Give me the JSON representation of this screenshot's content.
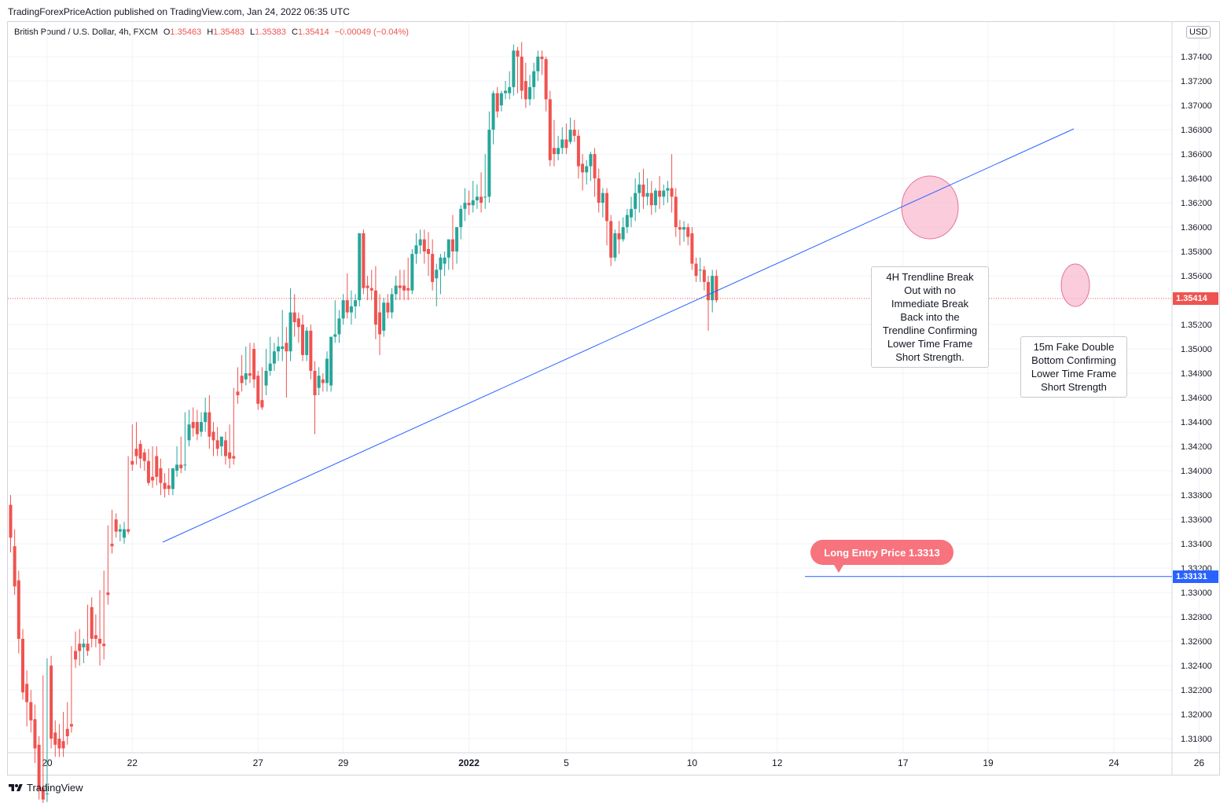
{
  "header": {
    "publisher": "TradingForexPriceAction published on TradingView.com, Jan 24, 2022 06:35 UTC"
  },
  "symbol": {
    "name": "British Pound / U.S. Dollar, 4h, FXCM",
    "o_label": "O",
    "o": "1.35463",
    "h_label": "H",
    "h": "1.35483",
    "l_label": "L",
    "l": "1.35383",
    "c_label": "C",
    "c": "1.35414",
    "change": "−0.00049 (−0.04%)"
  },
  "currency": "USD",
  "footer": {
    "brand": "TradingView"
  },
  "annotations": {
    "trendline_note": [
      "4H Trendline Break",
      "Out with no",
      "Immediate Break",
      "Back into the",
      "Trendline Confirming",
      "Lower Time Frame",
      "Short Strength."
    ],
    "fake_bottom_note": [
      "15m Fake Double",
      "Bottom Confirming",
      "Lower Time Frame",
      "Short Strength"
    ],
    "entry_label": "Long Entry Price 1.3313"
  },
  "price_tags": {
    "current": "1.35414",
    "entry": "1.33131"
  },
  "colors": {
    "up": "#26a69a",
    "down": "#ef5350",
    "trendline": "#2962ff",
    "highlight": "#f8bbd0",
    "entry_line": "#2962ff",
    "current_line": "#ef5350"
  },
  "chart_data": {
    "type": "candlestick",
    "symbol": "GBPUSD",
    "timeframe": "4h",
    "y_ticks": [
      "1.37400",
      "1.37200",
      "1.37000",
      "1.36800",
      "1.36600",
      "1.36400",
      "1.36200",
      "1.36000",
      "1.35800",
      "1.35600",
      "1.35200",
      "1.35000",
      "1.34800",
      "1.34600",
      "1.34400",
      "1.34200",
      "1.34000",
      "1.33800",
      "1.33600",
      "1.33400",
      "1.33200",
      "1.33000",
      "1.32800",
      "1.32600",
      "1.32400",
      "1.32200",
      "1.32000",
      "1.31800"
    ],
    "ylim": [
      1.3162,
      1.3762
    ],
    "x_ticks": [
      {
        "label": "20",
        "i": 9
      },
      {
        "label": "22",
        "i": 30
      },
      {
        "label": "27",
        "i": 61
      },
      {
        "label": "29",
        "i": 82
      },
      {
        "label": "2022",
        "i": 113
      },
      {
        "label": "5",
        "i": 137
      },
      {
        "label": "10",
        "i": 168
      },
      {
        "label": "12",
        "i": 189
      },
      {
        "label": "17",
        "i": 220
      },
      {
        "label": "19",
        "i": 241
      },
      {
        "label": "24",
        "i": 272
      },
      {
        "label": "26",
        "i": 293
      }
    ],
    "candles": [
      [
        1.3372,
        1.338,
        1.3345,
        1.3333
      ],
      [
        1.3338,
        1.3352,
        1.3305,
        1.3298
      ],
      [
        1.331,
        1.3318,
        1.3262,
        1.325
      ],
      [
        1.3262,
        1.327,
        1.3218,
        1.3212
      ],
      [
        1.3225,
        1.3236,
        1.321,
        1.319
      ],
      [
        1.321,
        1.322,
        1.3195,
        1.3185
      ],
      [
        1.3196,
        1.3208,
        1.3172,
        1.316
      ],
      [
        1.3175,
        1.3182,
        1.3138,
        1.313
      ],
      [
        1.314,
        1.3232,
        1.313,
        1.3125
      ],
      [
        1.3135,
        1.3246,
        1.3135,
        1.3128
      ],
      [
        1.324,
        1.3248,
        1.318,
        1.3172
      ],
      [
        1.3185,
        1.3195,
        1.3175,
        1.3165
      ],
      [
        1.318,
        1.3192,
        1.3172,
        1.3165
      ],
      [
        1.3178,
        1.3202,
        1.3172,
        1.3165
      ],
      [
        1.3188,
        1.321,
        1.3182,
        1.3175
      ],
      [
        1.3192,
        1.3256,
        1.319,
        1.3185
      ],
      [
        1.3252,
        1.3268,
        1.3245,
        1.3238
      ],
      [
        1.3258,
        1.327,
        1.3252,
        1.324
      ],
      [
        1.3255,
        1.3262,
        1.3258,
        1.3242
      ],
      [
        1.3258,
        1.329,
        1.3252,
        1.3248
      ],
      [
        1.3288,
        1.3296,
        1.3262,
        1.3255
      ],
      [
        1.3265,
        1.3282,
        1.3262,
        1.3255
      ],
      [
        1.3262,
        1.3302,
        1.3258,
        1.324
      ],
      [
        1.3258,
        1.3318,
        1.3256,
        1.3245
      ],
      [
        1.33,
        1.3355,
        1.3298,
        1.329
      ],
      [
        1.334,
        1.3368,
        1.3338,
        1.3332
      ],
      [
        1.336,
        1.3365,
        1.335,
        1.3345
      ],
      [
        1.335,
        1.3356,
        1.3352,
        1.3342
      ],
      [
        1.3345,
        1.3358,
        1.3352,
        1.334
      ],
      [
        1.3352,
        1.3412,
        1.335,
        1.3348
      ],
      [
        1.3408,
        1.3438,
        1.3405,
        1.34
      ],
      [
        1.3418,
        1.344,
        1.3412,
        1.3405
      ],
      [
        1.3422,
        1.3425,
        1.341,
        1.3402
      ],
      [
        1.3415,
        1.3418,
        1.3408,
        1.34
      ],
      [
        1.3408,
        1.3418,
        1.339,
        1.3388
      ],
      [
        1.3395,
        1.342,
        1.3392,
        1.3386
      ],
      [
        1.3412,
        1.342,
        1.3395,
        1.3388
      ],
      [
        1.3402,
        1.341,
        1.339,
        1.338
      ],
      [
        1.339,
        1.3398,
        1.3385,
        1.3378
      ],
      [
        1.3388,
        1.3402,
        1.3385,
        1.338
      ],
      [
        1.3385,
        1.34,
        1.3402,
        1.338
      ],
      [
        1.34,
        1.342,
        1.3405,
        1.3395
      ],
      [
        1.3405,
        1.3428,
        1.3402,
        1.3398
      ],
      [
        1.3405,
        1.3448,
        1.3405,
        1.34
      ],
      [
        1.3425,
        1.345,
        1.3438,
        1.342
      ],
      [
        1.344,
        1.3452,
        1.3435,
        1.3428
      ],
      [
        1.344,
        1.345,
        1.343,
        1.3425
      ],
      [
        1.3432,
        1.3448,
        1.344,
        1.3428
      ],
      [
        1.344,
        1.346,
        1.3448,
        1.3432
      ],
      [
        1.3448,
        1.3462,
        1.3428,
        1.3418
      ],
      [
        1.3432,
        1.344,
        1.3425,
        1.3412
      ],
      [
        1.3425,
        1.3436,
        1.3418,
        1.3412
      ],
      [
        1.342,
        1.3428,
        1.3428,
        1.3412
      ],
      [
        1.3425,
        1.3432,
        1.3412,
        1.3405
      ],
      [
        1.3415,
        1.3438,
        1.341,
        1.3402
      ],
      [
        1.3412,
        1.3468,
        1.341,
        1.3405
      ],
      [
        1.3465,
        1.3485,
        1.3462,
        1.3455
      ],
      [
        1.3478,
        1.3495,
        1.3472,
        1.3465
      ],
      [
        1.3475,
        1.3502,
        1.348,
        1.347
      ],
      [
        1.348,
        1.3505,
        1.3478,
        1.3472
      ],
      [
        1.35,
        1.3505,
        1.3475,
        1.3468
      ],
      [
        1.3478,
        1.3482,
        1.3455,
        1.345
      ],
      [
        1.3458,
        1.3485,
        1.3452,
        1.345
      ],
      [
        1.347,
        1.35,
        1.3482,
        1.3462
      ],
      [
        1.3482,
        1.351,
        1.3488,
        1.3478
      ],
      [
        1.3488,
        1.3505,
        1.3498,
        1.3482
      ],
      [
        1.3498,
        1.351,
        1.3502,
        1.349
      ],
      [
        1.35,
        1.3532,
        1.3502,
        1.349
      ],
      [
        1.3505,
        1.3518,
        1.3498,
        1.346
      ],
      [
        1.3498,
        1.355,
        1.353,
        1.349
      ],
      [
        1.353,
        1.3545,
        1.3522,
        1.351
      ],
      [
        1.3525,
        1.353,
        1.3518,
        1.3505
      ],
      [
        1.352,
        1.3528,
        1.3495,
        1.349
      ],
      [
        1.3495,
        1.3518,
        1.3515,
        1.349
      ],
      [
        1.3515,
        1.352,
        1.3482,
        1.3475
      ],
      [
        1.3482,
        1.349,
        1.3462,
        1.343
      ],
      [
        1.3468,
        1.3485,
        1.3478,
        1.3462
      ],
      [
        1.3475,
        1.348,
        1.3472,
        1.3465
      ],
      [
        1.3472,
        1.3498,
        1.3492,
        1.3465
      ],
      [
        1.347,
        1.351,
        1.351,
        1.3465
      ],
      [
        1.351,
        1.354,
        1.3512,
        1.3505
      ],
      [
        1.3512,
        1.3532,
        1.3525,
        1.3505
      ],
      [
        1.3525,
        1.3545,
        1.354,
        1.352
      ],
      [
        1.354,
        1.3562,
        1.353,
        1.3525
      ],
      [
        1.353,
        1.3548,
        1.3535,
        1.352
      ],
      [
        1.3535,
        1.3545,
        1.354,
        1.3525
      ],
      [
        1.354,
        1.3595,
        1.3595,
        1.3535
      ],
      [
        1.3595,
        1.3598,
        1.355,
        1.3545
      ],
      [
        1.3552,
        1.356,
        1.355,
        1.354
      ],
      [
        1.355,
        1.3565,
        1.3548,
        1.354
      ],
      [
        1.3548,
        1.3568,
        1.352,
        1.3508
      ],
      [
        1.353,
        1.3545,
        1.3512,
        1.3495
      ],
      [
        1.3515,
        1.3542,
        1.3538,
        1.351
      ],
      [
        1.3538,
        1.3545,
        1.353,
        1.3525
      ],
      [
        1.353,
        1.355,
        1.3545,
        1.3525
      ],
      [
        1.3545,
        1.356,
        1.3552,
        1.354
      ],
      [
        1.3552,
        1.3565,
        1.355,
        1.354
      ],
      [
        1.3552,
        1.3565,
        1.3548,
        1.354
      ],
      [
        1.355,
        1.3575,
        1.3548,
        1.354
      ],
      [
        1.3548,
        1.3582,
        1.3578,
        1.3545
      ],
      [
        1.3578,
        1.3595,
        1.3585,
        1.357
      ],
      [
        1.3585,
        1.3598,
        1.359,
        1.3578
      ],
      [
        1.359,
        1.3598,
        1.358,
        1.357
      ],
      [
        1.3582,
        1.3596,
        1.3578,
        1.356
      ],
      [
        1.3578,
        1.359,
        1.3555,
        1.3548
      ],
      [
        1.3558,
        1.357,
        1.3565,
        1.3535
      ],
      [
        1.3565,
        1.3578,
        1.3575,
        1.3545
      ],
      [
        1.357,
        1.358,
        1.3575,
        1.356
      ],
      [
        1.3575,
        1.3585,
        1.359,
        1.3565
      ],
      [
        1.359,
        1.361,
        1.358,
        1.3565
      ],
      [
        1.358,
        1.36,
        1.36,
        1.357
      ],
      [
        1.36,
        1.3618,
        1.3615,
        1.359
      ],
      [
        1.3615,
        1.3632,
        1.362,
        1.3605
      ],
      [
        1.362,
        1.363,
        1.3618,
        1.361
      ],
      [
        1.3618,
        1.3638,
        1.3622,
        1.3612
      ],
      [
        1.3622,
        1.3635,
        1.3625,
        1.3615
      ],
      [
        1.3625,
        1.3645,
        1.362,
        1.3612
      ],
      [
        1.3625,
        1.366,
        1.3625,
        1.3615
      ],
      [
        1.3625,
        1.3695,
        1.368,
        1.362
      ],
      [
        1.368,
        1.3712,
        1.371,
        1.3668
      ],
      [
        1.371,
        1.3715,
        1.3695,
        1.369
      ],
      [
        1.37,
        1.3712,
        1.371,
        1.3695
      ],
      [
        1.371,
        1.372,
        1.3712,
        1.3705
      ],
      [
        1.371,
        1.3728,
        1.3715,
        1.3705
      ],
      [
        1.3715,
        1.375,
        1.3745,
        1.3708
      ],
      [
        1.3745,
        1.3748,
        1.374,
        1.371
      ],
      [
        1.374,
        1.3752,
        1.3712,
        1.3705
      ],
      [
        1.372,
        1.3735,
        1.3705,
        1.3698
      ],
      [
        1.3705,
        1.3725,
        1.3715,
        1.37
      ],
      [
        1.3715,
        1.3735,
        1.3728,
        1.3705
      ],
      [
        1.3728,
        1.3745,
        1.374,
        1.372
      ],
      [
        1.374,
        1.3745,
        1.3738,
        1.3725
      ],
      [
        1.3738,
        1.374,
        1.3705,
        1.3695
      ],
      [
        1.3705,
        1.3712,
        1.3655,
        1.365
      ],
      [
        1.3665,
        1.3688,
        1.366,
        1.365
      ],
      [
        1.366,
        1.3675,
        1.3665,
        1.3655
      ],
      [
        1.3665,
        1.3682,
        1.3672,
        1.366
      ],
      [
        1.3672,
        1.3685,
        1.3665,
        1.366
      ],
      [
        1.367,
        1.369,
        1.368,
        1.3668
      ],
      [
        1.368,
        1.3688,
        1.3675,
        1.367
      ],
      [
        1.3675,
        1.368,
        1.365,
        1.364
      ],
      [
        1.3652,
        1.366,
        1.3645,
        1.363
      ],
      [
        1.3645,
        1.3655,
        1.365,
        1.3635
      ],
      [
        1.365,
        1.3662,
        1.366,
        1.3638
      ],
      [
        1.366,
        1.3665,
        1.364,
        1.3625
      ],
      [
        1.364,
        1.3648,
        1.362,
        1.3612
      ],
      [
        1.362,
        1.3632,
        1.3628,
        1.3608
      ],
      [
        1.3628,
        1.3632,
        1.3605,
        1.3585
      ],
      [
        1.3605,
        1.361,
        1.3575,
        1.3568
      ],
      [
        1.3575,
        1.3598,
        1.3595,
        1.3572
      ],
      [
        1.3595,
        1.3605,
        1.359,
        1.3578
      ],
      [
        1.359,
        1.3608,
        1.36,
        1.3588
      ],
      [
        1.36,
        1.3615,
        1.361,
        1.3595
      ],
      [
        1.3608,
        1.3625,
        1.3615,
        1.36
      ],
      [
        1.3615,
        1.364,
        1.3628,
        1.3605
      ],
      [
        1.3628,
        1.3645,
        1.3635,
        1.3612
      ],
      [
        1.3635,
        1.3648,
        1.3625,
        1.3615
      ],
      [
        1.3625,
        1.364,
        1.3628,
        1.3618
      ],
      [
        1.3628,
        1.3638,
        1.3618,
        1.361
      ],
      [
        1.3618,
        1.3632,
        1.363,
        1.3612
      ],
      [
        1.363,
        1.3642,
        1.3625,
        1.3615
      ],
      [
        1.3625,
        1.3635,
        1.363,
        1.3618
      ],
      [
        1.363,
        1.3638,
        1.3632,
        1.362
      ],
      [
        1.3632,
        1.366,
        1.3625,
        1.3612
      ],
      [
        1.3625,
        1.3632,
        1.36,
        1.3592
      ],
      [
        1.36,
        1.3606,
        1.3598,
        1.3585
      ],
      [
        1.3598,
        1.3605,
        1.36,
        1.3588
      ],
      [
        1.36,
        1.3603,
        1.3592,
        1.3585
      ],
      [
        1.3595,
        1.36,
        1.357,
        1.3565
      ],
      [
        1.357,
        1.3575,
        1.356,
        1.3555
      ],
      [
        1.3565,
        1.3575,
        1.3565,
        1.3555
      ],
      [
        1.3565,
        1.3568,
        1.3555,
        1.3548
      ],
      [
        1.3555,
        1.356,
        1.354,
        1.3515
      ],
      [
        1.354,
        1.3565,
        1.356,
        1.353
      ],
      [
        1.356,
        1.3565,
        1.354,
        1.3538
      ]
    ]
  }
}
